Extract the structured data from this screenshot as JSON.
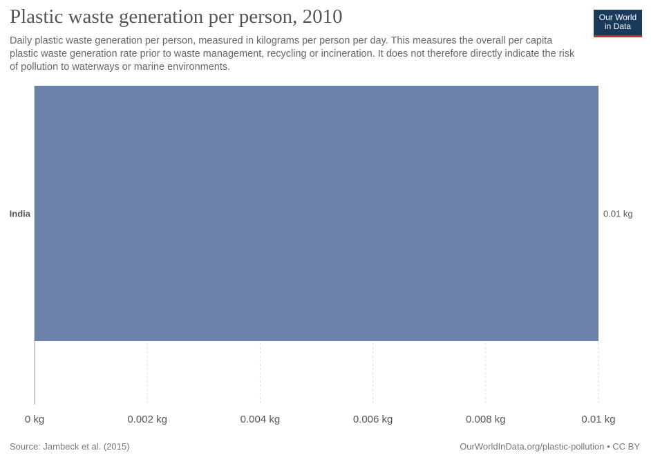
{
  "header": {
    "title": "Plastic waste generation per person, 2010",
    "subtitle": "Daily plastic waste generation per person, measured in kilograms per person per day. This measures the overall per capita plastic waste generation rate prior to waste management, recycling or incineration. It does not therefore directly indicate the risk of pollution to waterways or marine environments."
  },
  "logo": {
    "line1": "Our World",
    "line2": "in Data",
    "background": "#1a3a5c",
    "accent": "#d42b21"
  },
  "chart_data": {
    "type": "bar",
    "orientation": "horizontal",
    "categories": [
      "India"
    ],
    "values": [
      0.01
    ],
    "value_labels": [
      "0.01 kg"
    ],
    "bar_color": "#6a82aa",
    "xlim": [
      0,
      0.01
    ],
    "x_ticks": [
      0,
      0.002,
      0.004,
      0.006,
      0.008,
      0.01
    ],
    "x_tick_labels": [
      "0 kg",
      "0.002 kg",
      "0.004 kg",
      "0.006 kg",
      "0.008 kg",
      "0.01 kg"
    ],
    "grid": "vertical dashed"
  },
  "footer": {
    "source": "Source: Jambeck et al. (2015)",
    "credit": "OurWorldInData.org/plastic-pollution • CC BY"
  }
}
